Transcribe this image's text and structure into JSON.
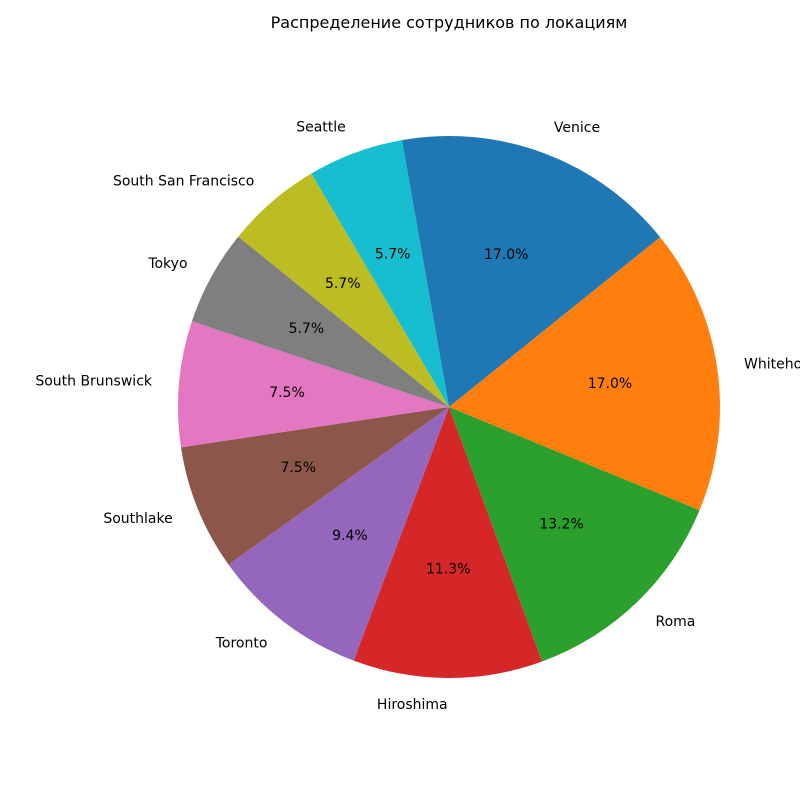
{
  "chart_data": {
    "type": "pie",
    "title": "Распределение сотрудников по локациям",
    "start_angle_deg": 90,
    "direction": "clockwise",
    "slices": [
      {
        "label": "Venice",
        "value": 17.0,
        "pct_label": "17.0%",
        "color": "#1f77b4"
      },
      {
        "label": "Whitehorse",
        "value": 17.0,
        "pct_label": "17.0%",
        "color": "#ff7f0e"
      },
      {
        "label": "Roma",
        "value": 13.2,
        "pct_label": "13.2%",
        "color": "#2ca02c"
      },
      {
        "label": "Hiroshima",
        "value": 11.3,
        "pct_label": "11.3%",
        "color": "#d62728"
      },
      {
        "label": "Toronto",
        "value": 9.4,
        "pct_label": "9.4%",
        "color": "#9467bd"
      },
      {
        "label": "Southlake",
        "value": 7.5,
        "pct_label": "7.5%",
        "color": "#8c564b"
      },
      {
        "label": "South Brunswick",
        "value": 7.5,
        "pct_label": "7.5%",
        "color": "#e377c2"
      },
      {
        "label": "Tokyo",
        "value": 5.7,
        "pct_label": "5.7%",
        "color": "#7f7f7f"
      },
      {
        "label": "South San Francisco",
        "value": 5.7,
        "pct_label": "5.7%",
        "color": "#bcbd22"
      },
      {
        "label": "Seattle",
        "value": 5.7,
        "pct_label": "5.7%",
        "color": "#17becf"
      }
    ]
  }
}
